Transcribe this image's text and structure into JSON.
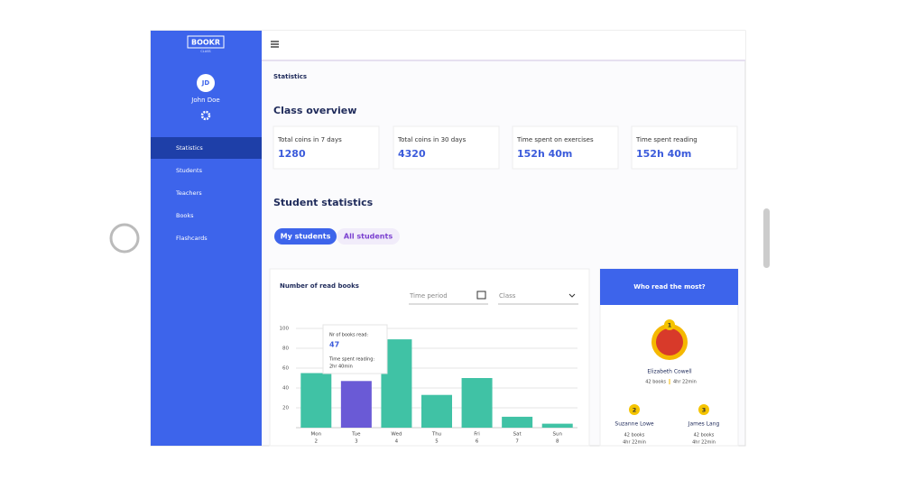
{
  "sidebar": {
    "logo": "BOOKR",
    "logo_sub": "CLASS",
    "avatar": "JD",
    "user": "John Doe",
    "menu": [
      "Statistics",
      "Students",
      "Teachers",
      "Books",
      "Flashcards"
    ]
  },
  "breadcrumb": "Statistics",
  "overview": {
    "title": "Class overview",
    "cards": [
      {
        "label": "Total coins in 7 days",
        "value": 1280
      },
      {
        "label": "Total coins in 30 days",
        "value": 4320
      },
      {
        "label": "Time spent on exercises",
        "value": "152h 40m"
      },
      {
        "label": "Time spent reading",
        "value": "152h 40m"
      }
    ]
  },
  "student_stats": {
    "title": "Student statistics",
    "tabs": [
      "My students",
      "All students"
    ]
  },
  "filters": {
    "period": "Time period",
    "class": "Class"
  },
  "chart_data": {
    "type": "bar",
    "title": "Number of read books",
    "categories": [
      "Mon",
      "Tue",
      "Wed",
      "Thu",
      "Fri",
      "Sat",
      "Sun"
    ],
    "dates": [
      "2",
      "3",
      "4",
      "5",
      "6",
      "7",
      "8"
    ],
    "values": [
      55,
      47,
      89,
      33,
      50,
      11,
      4
    ],
    "colors": [
      "#40c2a5",
      "#6a5ad6",
      "#40c2a5",
      "#40c2a5",
      "#40c2a5",
      "#40c2a5",
      "#40c2a5"
    ],
    "ylim": [
      0,
      100
    ],
    "yticks": [
      20,
      40,
      60,
      80,
      100
    ],
    "grid": true,
    "tooltip": {
      "label1": "Nr of books read:",
      "value": 47,
      "label2": "Time spent reading:",
      "time": "2hr 40min"
    }
  },
  "leaders": {
    "title": "Who read the most?",
    "people": [
      {
        "rank": 1,
        "name": "Elizabeth Cowell",
        "books": "42 books",
        "time": "4hr 22min"
      },
      {
        "rank": 2,
        "name": "Suzanne Lowe",
        "books": "42 books",
        "time": "4hr 22min"
      },
      {
        "rank": 3,
        "name": "James Lang",
        "books": "42 books",
        "time": "4hr 22min"
      }
    ]
  }
}
